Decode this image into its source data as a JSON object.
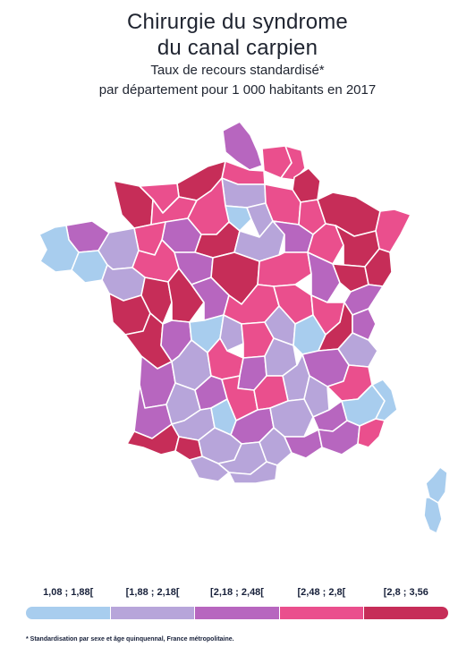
{
  "title": {
    "line1": "Chirurgie du syndrome",
    "line2": "du canal carpien",
    "subtitle1": "Taux de recours standardisé*",
    "subtitle2": "par département pour 1 000 habitants en 2017"
  },
  "colors": {
    "class1": "#a8cdee",
    "class2": "#b7a5da",
    "class3": "#b766bf",
    "class4": "#ea4f8d",
    "class5": "#c62d58",
    "border": "#ffffff"
  },
  "legend": {
    "items": [
      {
        "label": "1,08 ; 1,88[",
        "color": "#a8cdee"
      },
      {
        "label": "[1,88 ; 2,18[",
        "color": "#b7a5da"
      },
      {
        "label": "[2,18 ; 2,48[",
        "color": "#b766bf"
      },
      {
        "label": "[2,48 ; 2,8[",
        "color": "#ea4f8d"
      },
      {
        "label": "[2,8 ; 3,56",
        "color": "#c62d58"
      }
    ]
  },
  "footnote": "* Standardisation par sexe et âge quinquennal, France métropolitaine."
}
